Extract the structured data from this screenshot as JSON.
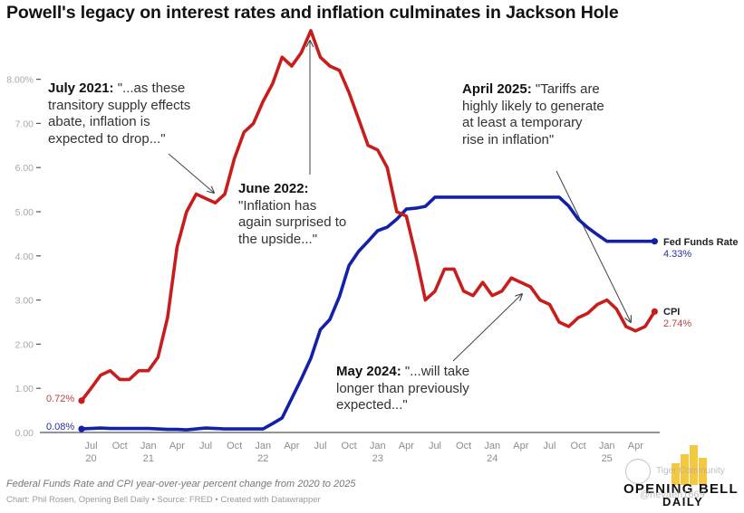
{
  "title": "Powell's legacy on interest rates and inflation culminates in Jackson Hole",
  "footer": {
    "description": "Federal Funds Rate and CPI year-over-year percent change from 2020 to 2025",
    "credit": "Chart: Phil Rosen, Opening Bell Daily • Source: FRED • Created with Datawrapper"
  },
  "logo": {
    "line1": "OPENING BELL",
    "line2": "DAILY",
    "bar_color": "#f5c842"
  },
  "watermark": {
    "line1": "Tiger Community",
    "line2": "@nevaeh1669"
  },
  "annotations": [
    {
      "bold": "July 2021:",
      "text_lines": [
        " \"...as these",
        "transitory supply effects",
        "abate, inflation is",
        "expected to drop...\""
      ]
    },
    {
      "bold": "June 2022:",
      "text_lines": [
        "",
        "\"Inflation has",
        "again surprised to",
        "the upside...\""
      ]
    },
    {
      "bold": "April 2025:",
      "text_lines": [
        " \"Tariffs are",
        "highly likely to generate",
        "at least a temporary",
        "rise in inflation\""
      ]
    },
    {
      "bold": "May 2024:",
      "text_lines": [
        " \"...will take",
        "longer than previously",
        "expected...\""
      ]
    }
  ],
  "colors": {
    "cpi": "#c71e1d",
    "fed_funds": "#1221a8",
    "axis": "#333333",
    "arrow": "#444444"
  },
  "chart_data": {
    "type": "line",
    "title": "Powell's legacy on interest rates and inflation culminates in Jackson Hole",
    "xlabel": "",
    "ylabel": "",
    "ylim": [
      0,
      8.8
    ],
    "grid": false,
    "y_ticks": [
      "0.00",
      "1.00",
      "2.00",
      "3.00",
      "4.00",
      "5.00",
      "6.00",
      "7.00",
      "8.00%"
    ],
    "y_tick_values": [
      0,
      1,
      2,
      3,
      4,
      5,
      6,
      7,
      8
    ],
    "x_ticks": [
      {
        "month": "Jul",
        "year": "20"
      },
      {
        "month": "Oct",
        "year": ""
      },
      {
        "month": "Jan",
        "year": "21"
      },
      {
        "month": "Apr",
        "year": ""
      },
      {
        "month": "Jul",
        "year": ""
      },
      {
        "month": "Oct",
        "year": ""
      },
      {
        "month": "Jan",
        "year": "22"
      },
      {
        "month": "Apr",
        "year": ""
      },
      {
        "month": "Jul",
        "year": ""
      },
      {
        "month": "Oct",
        "year": ""
      },
      {
        "month": "Jan",
        "year": "23"
      },
      {
        "month": "Apr",
        "year": ""
      },
      {
        "month": "Jul",
        "year": ""
      },
      {
        "month": "Oct",
        "year": ""
      },
      {
        "month": "Jan",
        "year": "24"
      },
      {
        "month": "Apr",
        "year": ""
      },
      {
        "month": "Jul",
        "year": ""
      },
      {
        "month": "Oct",
        "year": ""
      },
      {
        "month": "Jan",
        "year": "25"
      },
      {
        "month": "Apr",
        "year": ""
      }
    ],
    "x_tick_month_index": [
      1,
      4,
      7,
      10,
      13,
      16,
      19,
      22,
      25,
      28,
      31,
      34,
      37,
      40,
      43,
      46,
      49,
      52,
      55,
      58
    ],
    "x_start": "2020-06",
    "x_end": "2025-07",
    "series": [
      {
        "name": "CPI",
        "end_label": "2.74%",
        "start_label": "0.72%",
        "values": [
          0.72,
          1.0,
          1.3,
          1.4,
          1.2,
          1.2,
          1.4,
          1.4,
          1.7,
          2.6,
          4.2,
          5.0,
          5.4,
          5.3,
          5.2,
          5.4,
          6.2,
          6.8,
          7.0,
          7.5,
          7.9,
          8.5,
          8.3,
          8.6,
          9.1,
          8.5,
          8.3,
          8.2,
          7.7,
          7.1,
          6.5,
          6.4,
          6.0,
          5.0,
          4.9,
          4.0,
          3.0,
          3.2,
          3.7,
          3.7,
          3.2,
          3.1,
          3.4,
          3.1,
          3.2,
          3.5,
          3.4,
          3.3,
          3.0,
          2.9,
          2.5,
          2.4,
          2.6,
          2.7,
          2.9,
          3.0,
          2.8,
          2.4,
          2.3,
          2.4,
          2.74
        ]
      },
      {
        "name": "Fed Funds Rate",
        "end_label": "4.33%",
        "start_label": "0.08%",
        "values": [
          0.08,
          0.09,
          0.1,
          0.09,
          0.09,
          0.09,
          0.09,
          0.09,
          0.08,
          0.07,
          0.07,
          0.06,
          0.08,
          0.1,
          0.09,
          0.08,
          0.08,
          0.08,
          0.08,
          0.08,
          0.2,
          0.33,
          0.77,
          1.21,
          1.68,
          2.33,
          2.56,
          3.08,
          3.78,
          4.1,
          4.33,
          4.57,
          4.65,
          4.83,
          5.06,
          5.08,
          5.12,
          5.33,
          5.33,
          5.33,
          5.33,
          5.33,
          5.33,
          5.33,
          5.33,
          5.33,
          5.33,
          5.33,
          5.33,
          5.33,
          5.33,
          5.13,
          4.83,
          4.64,
          4.48,
          4.33,
          4.33,
          4.33,
          4.33,
          4.33,
          4.33
        ]
      }
    ],
    "legend": "inline line-end labels (right)"
  }
}
